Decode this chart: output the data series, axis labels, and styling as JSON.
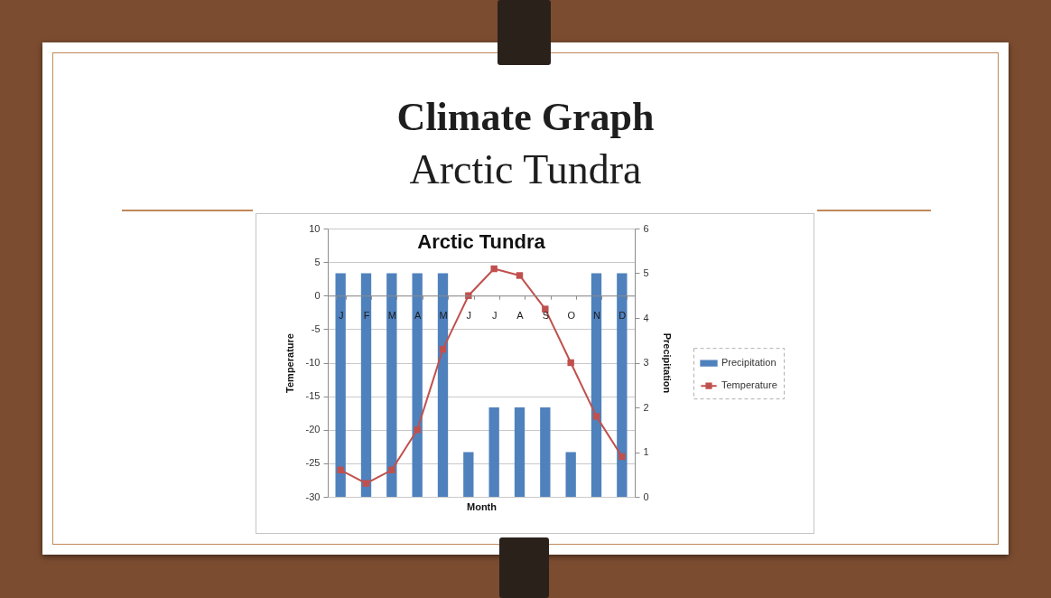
{
  "chart_data": {
    "type": "bar",
    "title": "Climate Graph",
    "subtitle": "Arctic Tundra",
    "annotations": [
      "Arctic Tundra"
    ],
    "xlabel": "Month",
    "ylabel": "Temperature",
    "y2label": "Precipitation",
    "categories": [
      "J",
      "F",
      "M",
      "A",
      "M",
      "J",
      "J",
      "A",
      "S",
      "O",
      "N",
      "D"
    ],
    "series": [
      {
        "name": "Precipitation",
        "axis": "y2",
        "color": "#4f81bd",
        "values": [
          5,
          5,
          5,
          5,
          5,
          1,
          2,
          2,
          2,
          1,
          5,
          5
        ]
      },
      {
        "name": "Temperature",
        "type": "line",
        "color": "#c0504d",
        "values": [
          -26,
          -28,
          -26,
          -20,
          -8,
          0,
          4,
          3,
          -2,
          -10,
          -18,
          -24
        ]
      }
    ],
    "ylim": [
      -30,
      10
    ],
    "yticks": [
      -30,
      -25,
      -20,
      -15,
      -10,
      -5,
      0,
      5,
      10
    ],
    "y2lim": [
      0,
      6
    ],
    "y2ticks": [
      0,
      1,
      2,
      3,
      4,
      5,
      6
    ],
    "grid": "y",
    "legend": "right",
    "marker": "square",
    "line_style": "solid"
  }
}
